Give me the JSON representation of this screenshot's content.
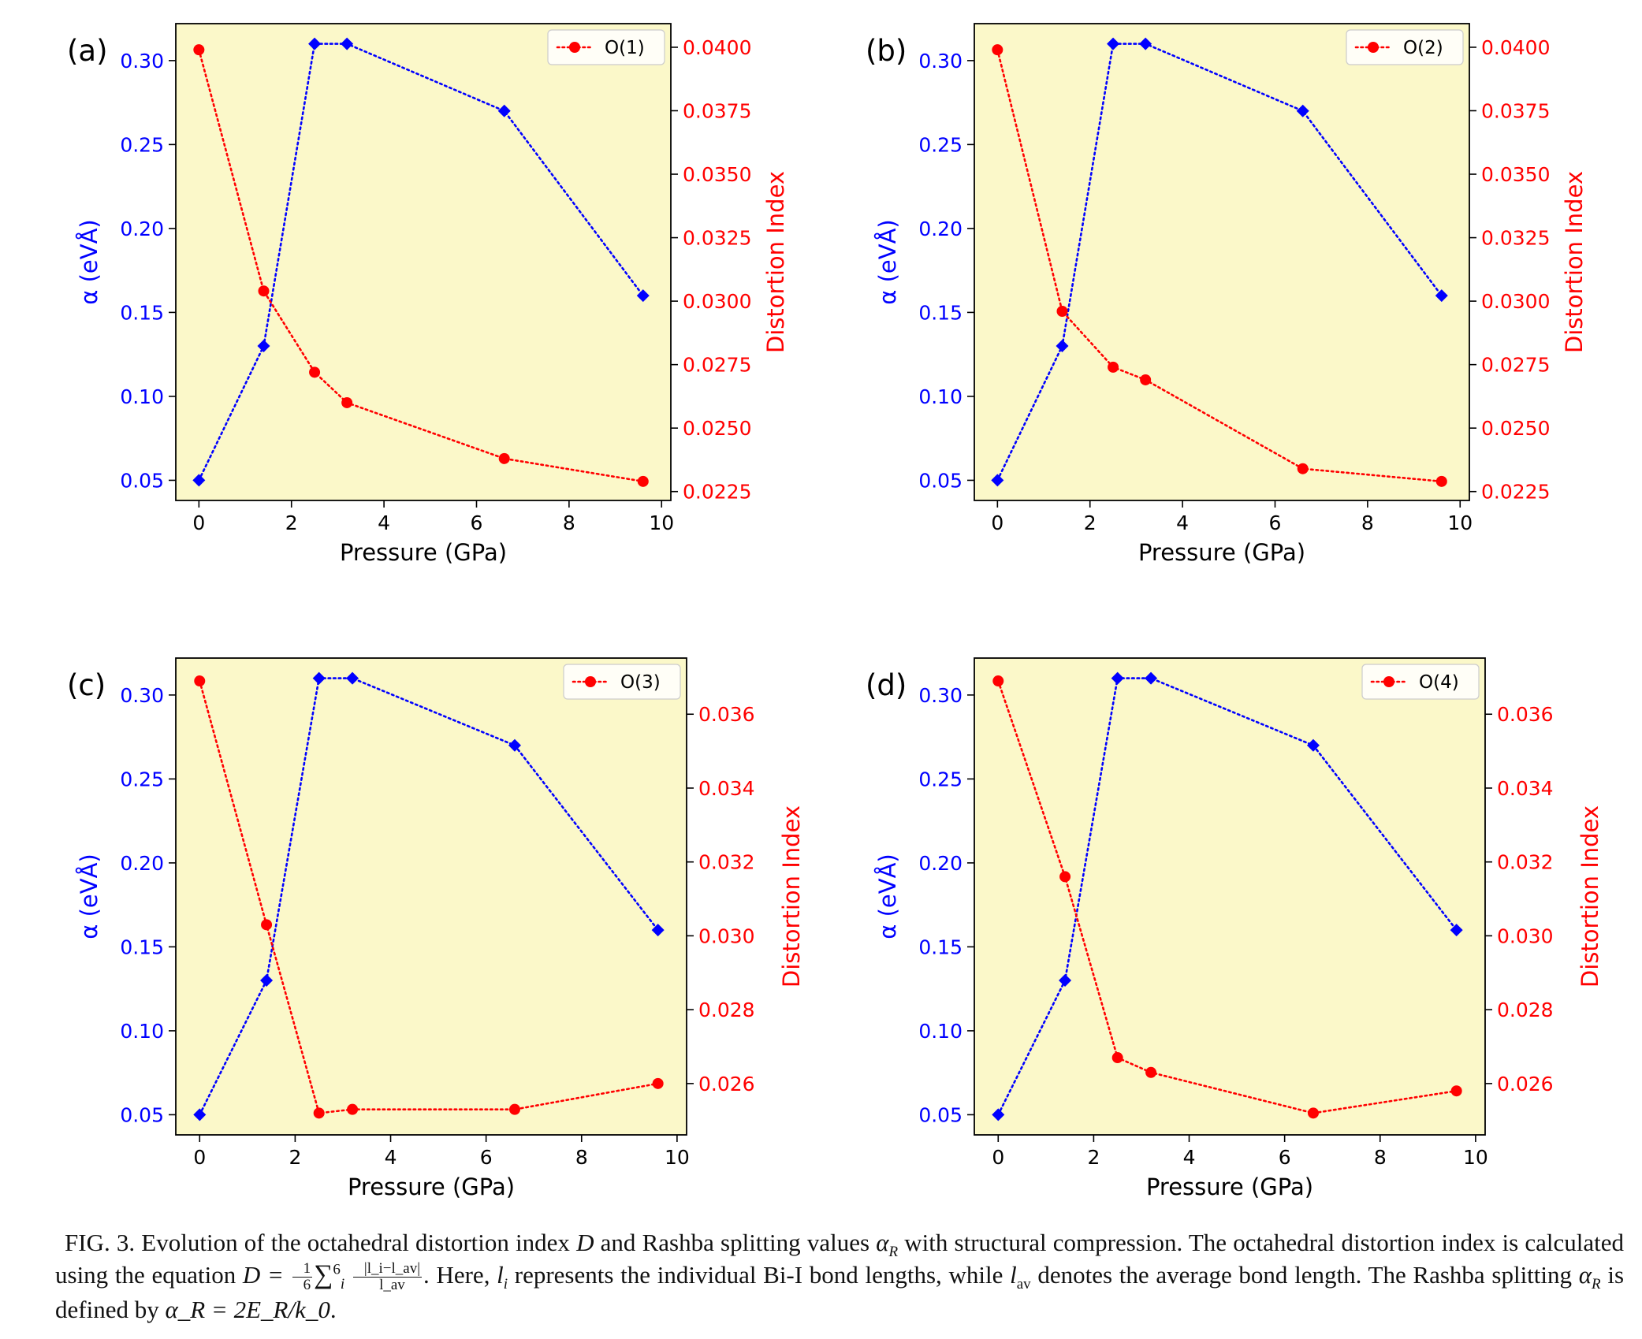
{
  "panels_colors": {
    "plot_bg": "#fbf8c9",
    "alpha_color": "#0000ff",
    "distortion_color": "#ff0000",
    "axis_color": "#000000"
  },
  "chart_data": [
    {
      "panel_label": "(a)",
      "type": "line",
      "x": [
        0,
        1.4,
        2.5,
        3.2,
        6.6,
        9.6
      ],
      "xlim": [
        -0.5,
        10.2
      ],
      "xticks": [
        0,
        2,
        4,
        6,
        8,
        10
      ],
      "xlabel": "Pressure (GPa)",
      "series": [
        {
          "axis": "left",
          "marker": "diamond",
          "values": [
            0.05,
            0.13,
            0.31,
            0.31,
            0.27,
            0.16
          ]
        },
        {
          "axis": "right",
          "name": "O(1)",
          "marker": "circle",
          "values": [
            0.0399,
            0.0304,
            0.0272,
            0.026,
            0.0238,
            0.0229
          ]
        }
      ],
      "ylabel_left": "α (eVÅ)",
      "ylim_left": [
        0.038,
        0.322
      ],
      "yticks_left": [
        "0.05",
        "0.10",
        "0.15",
        "0.20",
        "0.25",
        "0.30"
      ],
      "ylabel_right": "Distortion Index",
      "ylim_right": [
        0.02215,
        0.04093
      ],
      "yticks_right": [
        "0.0225",
        "0.0250",
        "0.0275",
        "0.0300",
        "0.0325",
        "0.0350",
        "0.0375",
        "0.0400"
      ],
      "legend": "top-right",
      "grid": false
    },
    {
      "panel_label": "(b)",
      "type": "line",
      "x": [
        0,
        1.4,
        2.5,
        3.2,
        6.6,
        9.6
      ],
      "xlim": [
        -0.5,
        10.2
      ],
      "xticks": [
        0,
        2,
        4,
        6,
        8,
        10
      ],
      "xlabel": "Pressure (GPa)",
      "series": [
        {
          "axis": "left",
          "marker": "diamond",
          "values": [
            0.05,
            0.13,
            0.31,
            0.31,
            0.27,
            0.16
          ]
        },
        {
          "axis": "right",
          "name": "O(2)",
          "marker": "circle",
          "values": [
            0.0399,
            0.0296,
            0.0274,
            0.0269,
            0.0234,
            0.0229
          ]
        }
      ],
      "ylabel_left": "α (eVÅ)",
      "ylim_left": [
        0.038,
        0.322
      ],
      "yticks_left": [
        "0.05",
        "0.10",
        "0.15",
        "0.20",
        "0.25",
        "0.30"
      ],
      "ylabel_right": "Distortion Index",
      "ylim_right": [
        0.02215,
        0.04093
      ],
      "yticks_right": [
        "0.0225",
        "0.0250",
        "0.0275",
        "0.0300",
        "0.0325",
        "0.0350",
        "0.0375",
        "0.0400"
      ],
      "legend": "top-right",
      "grid": false
    },
    {
      "panel_label": "(c)",
      "type": "line",
      "x": [
        0,
        1.4,
        2.5,
        3.2,
        6.6,
        9.6
      ],
      "xlim": [
        -0.5,
        10.2
      ],
      "xticks": [
        0,
        2,
        4,
        6,
        8,
        10
      ],
      "xlabel": "Pressure (GPa)",
      "series": [
        {
          "axis": "left",
          "marker": "diamond",
          "values": [
            0.05,
            0.13,
            0.31,
            0.31,
            0.27,
            0.16
          ]
        },
        {
          "axis": "right",
          "name": "O(3)",
          "marker": "circle",
          "values": [
            0.0369,
            0.0303,
            0.0252,
            0.0253,
            0.0253,
            0.026
          ]
        }
      ],
      "ylabel_left": "α (eVÅ)",
      "ylim_left": [
        0.038,
        0.322
      ],
      "yticks_left": [
        "0.05",
        "0.10",
        "0.15",
        "0.20",
        "0.25",
        "0.30"
      ],
      "ylabel_right": "Distortion Index",
      "ylim_right": [
        0.02461,
        0.03752
      ],
      "yticks_right": [
        "0.026",
        "0.028",
        "0.030",
        "0.032",
        "0.034",
        "0.036"
      ],
      "legend": "top-right",
      "grid": false
    },
    {
      "panel_label": "(d)",
      "type": "line",
      "x": [
        0,
        1.4,
        2.5,
        3.2,
        6.6,
        9.6
      ],
      "xlim": [
        -0.5,
        10.2
      ],
      "xticks": [
        0,
        2,
        4,
        6,
        8,
        10
      ],
      "xlabel": "Pressure (GPa)",
      "series": [
        {
          "axis": "left",
          "marker": "diamond",
          "values": [
            0.05,
            0.13,
            0.31,
            0.31,
            0.27,
            0.16
          ]
        },
        {
          "axis": "right",
          "name": "O(4)",
          "marker": "circle",
          "values": [
            0.0369,
            0.0316,
            0.0267,
            0.0263,
            0.0252,
            0.0258
          ]
        }
      ],
      "ylabel_left": "α (eVÅ)",
      "ylim_left": [
        0.038,
        0.322
      ],
      "yticks_left": [
        "0.05",
        "0.10",
        "0.15",
        "0.20",
        "0.25",
        "0.30"
      ],
      "ylabel_right": "Distortion Index",
      "ylim_right": [
        0.02461,
        0.03752
      ],
      "yticks_right": [
        "0.026",
        "0.028",
        "0.030",
        "0.032",
        "0.034",
        "0.036"
      ],
      "legend": "top-right",
      "grid": false
    }
  ],
  "caption": {
    "part1": "FIG. 3.  Evolution of the octahedral distortion index ",
    "sym_D": "D",
    "part2": " and Rashba splitting values ",
    "sym_alpha": "α",
    "sub_R": "R",
    "part3": " with structural compression. The octahedral distortion index is calculated using the equation ",
    "eq_lhs": "D = ",
    "eq_frac_num": "1",
    "eq_frac_den": "6",
    "eq_sum": "∑",
    "eq_sum_sup": "6",
    "eq_sum_sub": "i",
    "eq_frac2_num": "|l_i−l_av|",
    "eq_frac2_den": "l_av",
    "part4": ". Here, ",
    "sym_l": "l",
    "sub_i": "i",
    "part5": " represents the individual Bi-I bond lengths, while ",
    "sym_l2": "l",
    "sub_av": "av",
    "part6": " denotes the average bond length. The Rashba splitting ",
    "sym_alpha2": "α",
    "sub_R2": "R",
    "part7": " is defined by ",
    "eq_rashba": "α_R = 2E_R/k_0",
    "part8": "."
  }
}
